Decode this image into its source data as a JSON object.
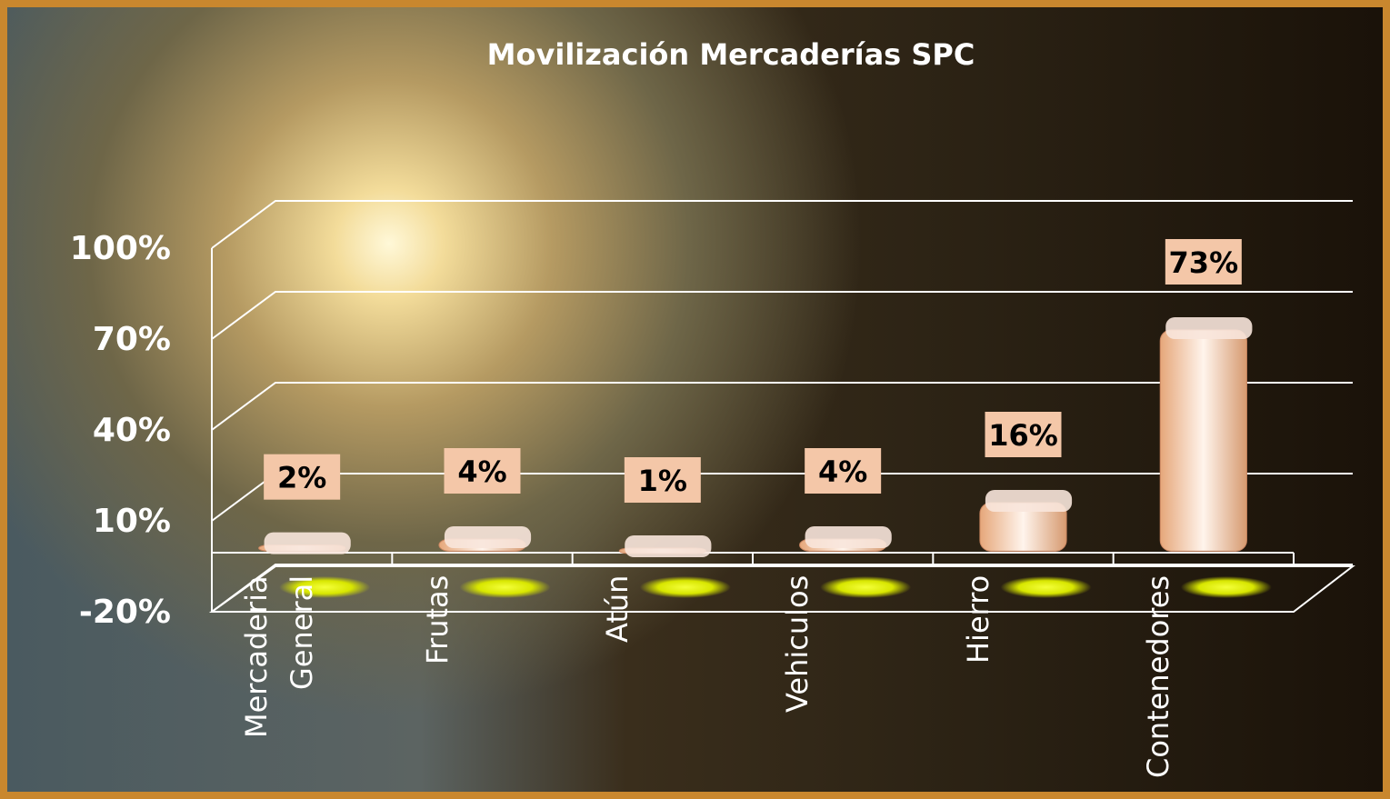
{
  "chart_data": {
    "type": "bar3d",
    "title": "Movilización Mercaderías SPC",
    "categories": [
      "Mercaderia General",
      "Frutas",
      "Atún",
      "Vehiculos",
      "Hierro",
      "Contenedores"
    ],
    "values": [
      2,
      4,
      1,
      4,
      16,
      73
    ],
    "value_labels": [
      "2%",
      "4%",
      "1%",
      "4%",
      "16%",
      "73%"
    ],
    "color": "#f4c7a8",
    "ylim": [
      -20,
      100
    ],
    "yticks": [
      {
        "value": -20,
        "label": "-20%"
      },
      {
        "value": 10,
        "label": "10%"
      },
      {
        "value": 40,
        "label": "40%"
      },
      {
        "value": 70,
        "label": "70%"
      },
      {
        "value": 100,
        "label": "100%"
      }
    ],
    "grid": true
  }
}
